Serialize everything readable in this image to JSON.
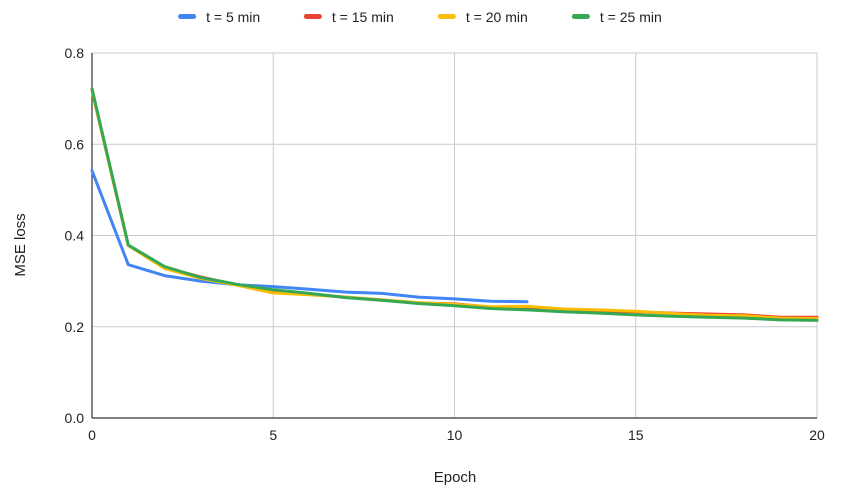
{
  "chart_data": {
    "type": "line",
    "xlabel": "Epoch",
    "ylabel": "MSE loss",
    "xlim": [
      0,
      20
    ],
    "ylim": [
      0,
      0.8
    ],
    "xticks": [
      0,
      5,
      10,
      15,
      20
    ],
    "yticks": [
      0.0,
      0.2,
      0.4,
      0.6,
      0.8
    ],
    "ytick_labels": [
      "0.0",
      "0.2",
      "0.4",
      "0.6",
      "0.8"
    ],
    "grid": true,
    "legend_position": "top",
    "series": [
      {
        "name": "t = 5 min",
        "color": "#4285f4",
        "x": [
          0,
          1,
          2,
          3,
          4,
          5,
          6,
          7,
          8,
          9,
          10,
          11,
          12
        ],
        "y": [
          0.542,
          0.336,
          0.312,
          0.3,
          0.292,
          0.288,
          0.282,
          0.276,
          0.273,
          0.265,
          0.261,
          0.256,
          0.255
        ]
      },
      {
        "name": "t = 15 min",
        "color": "#ea4335",
        "x": [
          0,
          1,
          2,
          3,
          4,
          5,
          6,
          7,
          8,
          9,
          10,
          11,
          12,
          13,
          14,
          15,
          16,
          17,
          18,
          19,
          20
        ],
        "y": [
          0.718,
          0.378,
          0.33,
          0.309,
          0.292,
          0.277,
          0.271,
          0.265,
          0.258,
          0.252,
          0.25,
          0.243,
          0.243,
          0.237,
          0.234,
          0.233,
          0.23,
          0.228,
          0.226,
          0.221,
          0.221
        ]
      },
      {
        "name": "t = 20 min",
        "color": "#fbbc04",
        "x": [
          0,
          1,
          2,
          3,
          4,
          5,
          6,
          7,
          8,
          9,
          10,
          11,
          12,
          13,
          14,
          15,
          16,
          17,
          18,
          19,
          20
        ],
        "y": [
          0.718,
          0.378,
          0.328,
          0.306,
          0.291,
          0.274,
          0.27,
          0.265,
          0.259,
          0.253,
          0.249,
          0.244,
          0.245,
          0.239,
          0.237,
          0.234,
          0.229,
          0.225,
          0.224,
          0.219,
          0.218
        ]
      },
      {
        "name": "t = 25 min",
        "color": "#34a853",
        "x": [
          0,
          1,
          2,
          3,
          4,
          5,
          6,
          7,
          8,
          9,
          10,
          11,
          12,
          13,
          14,
          15,
          16,
          17,
          18,
          19,
          20
        ],
        "y": [
          0.722,
          0.379,
          0.332,
          0.308,
          0.293,
          0.281,
          0.273,
          0.264,
          0.258,
          0.251,
          0.246,
          0.24,
          0.237,
          0.233,
          0.23,
          0.226,
          0.223,
          0.221,
          0.219,
          0.215,
          0.214
        ]
      }
    ]
  }
}
